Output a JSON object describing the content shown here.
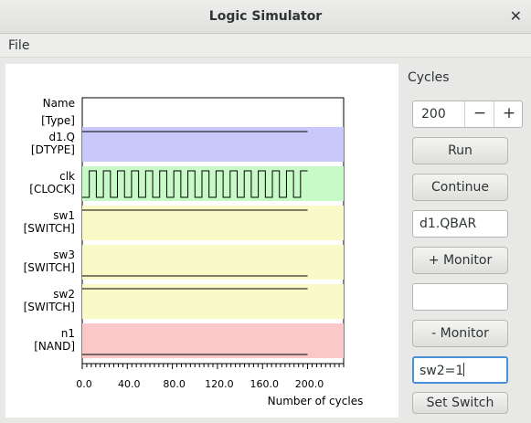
{
  "window": {
    "title": "Logic Simulator",
    "close_glyph": "✕"
  },
  "menu": {
    "file_label": "File"
  },
  "side": {
    "cycles_label": "Cycles",
    "cycles_value": "200",
    "minus_glyph": "−",
    "plus_glyph": "+",
    "run_label": "Run",
    "continue_label": "Continue",
    "monitor_add_value": "d1.QBAR",
    "add_monitor_label": "+ Monitor",
    "monitor_remove_value": "",
    "remove_monitor_label": "- Monitor",
    "switch_value": "sw2=1",
    "set_switch_label": "Set Switch"
  },
  "chart_data": {
    "type": "line",
    "header": [
      "Name",
      "[Type]"
    ],
    "xlabel": "Number of cycles",
    "xlim": [
      0,
      232
    ],
    "x_ticks": [
      "0.0",
      "40.0",
      "80.0",
      "120.0",
      "160.0",
      "200.0"
    ],
    "series": [
      {
        "name": "d1.Q",
        "type": "[DTYPE]",
        "color": "#c8c8fa",
        "signal": "high",
        "level": 1
      },
      {
        "name": "clk",
        "type": "[CLOCK]",
        "color": "#c8fac8",
        "signal": "clock",
        "half_period": 1,
        "cycles": 200
      },
      {
        "name": "sw1",
        "type": "[SWITCH]",
        "color": "#fafac8",
        "signal": "high",
        "level": 1
      },
      {
        "name": "sw3",
        "type": "[SWITCH]",
        "color": "#fafac8",
        "signal": "low",
        "level": 0
      },
      {
        "name": "sw2",
        "type": "[SWITCH]",
        "color": "#fafac8",
        "signal": "high",
        "level": 1
      },
      {
        "name": "n1",
        "type": "[NAND]",
        "color": "#fac8c8",
        "signal": "low",
        "level": 0
      }
    ]
  }
}
